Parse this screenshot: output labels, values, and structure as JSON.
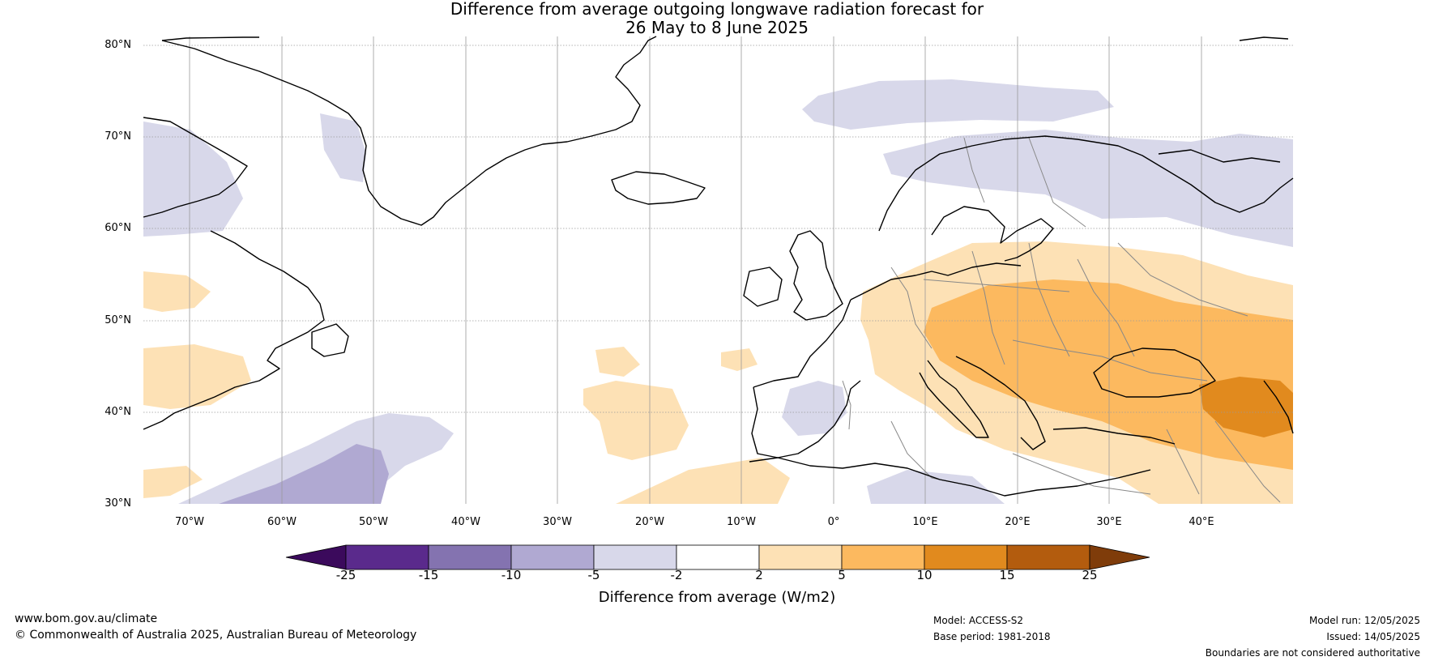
{
  "title": {
    "line1": "Difference from average outgoing longwave radiation forecast for",
    "line2": "26 May to 8 June 2025"
  },
  "map": {
    "lat_labels": [
      "80°N",
      "70°N",
      "60°N",
      "50°N",
      "40°N",
      "30°N"
    ],
    "lon_labels": [
      "70°W",
      "60°W",
      "50°W",
      "40°W",
      "30°W",
      "20°W",
      "10°W",
      "0°",
      "10°E",
      "20°E",
      "30°E",
      "40°E"
    ],
    "extent": {
      "lon": [
        -75,
        50
      ],
      "lat": [
        30,
        81
      ]
    },
    "colors": {
      "gridline": "#9a9a9a",
      "coastline": "#000000",
      "border": "#888888"
    }
  },
  "colorbar": {
    "ticks": [
      "-25",
      "-15",
      "-10",
      "-5",
      "-2",
      "2",
      "5",
      "10",
      "15",
      "25"
    ],
    "colors": {
      "under": "#3b0a5c",
      "bins": [
        "#5a2a8c",
        "#8473b0",
        "#b0a9d2",
        "#d8d8ea",
        "#ffffff",
        "#fde1b5",
        "#fcb95f",
        "#e18a1e",
        "#b35c0e"
      ],
      "over": "#7f3c0a"
    },
    "label": "Difference from average (W/m2)"
  },
  "footer": {
    "website": "www.bom.gov.au/climate",
    "copyright": "© Commonwealth of Australia 2025, Australian Bureau of Meteorology",
    "model": "Model: ACCESS-S2",
    "base_period": "Base period: 1981-2018",
    "model_run": "Model run: 12/05/2025",
    "issued": "Issued: 14/05/2025",
    "disclaimer": "Boundaries are not considered authoritative"
  }
}
